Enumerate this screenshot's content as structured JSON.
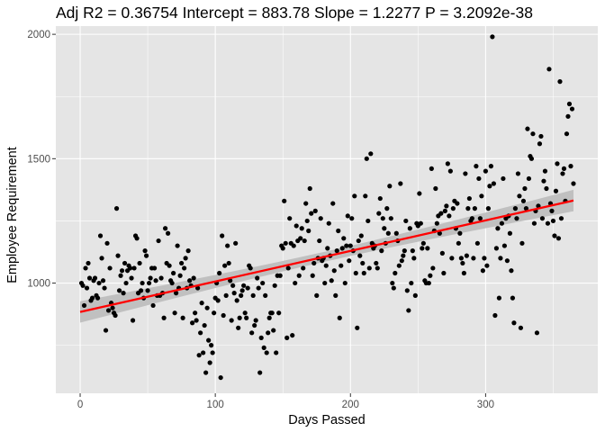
{
  "chart_data": {
    "type": "scatter",
    "title": "Adj R2 =  0.36754 Intercept = 883.78  Slope = 1.2277  P = 3.2092e-38",
    "xlabel": "Days Passed",
    "ylabel": "Employee Requirement",
    "xlim": [
      -18,
      383
    ],
    "ylim": [
      557,
      2033
    ],
    "xticks": [
      0,
      100,
      200,
      300
    ],
    "yticks": [
      1000,
      1500,
      2000
    ],
    "grid": true,
    "background": "#e5e5e5",
    "grid_color": "#ffffff",
    "point_color": "#000000",
    "fit_color": "#ff0000",
    "band_color": "#bebebe",
    "fit": {
      "type": "linear",
      "intercept": 883.78,
      "slope": 1.2277,
      "x_range": [
        0,
        365
      ],
      "ci_halfwidth_ends": 43,
      "ci_halfwidth_mid": 20
    },
    "points": [
      [
        1,
        1000
      ],
      [
        2,
        990
      ],
      [
        3,
        910
      ],
      [
        4,
        1060
      ],
      [
        5,
        980
      ],
      [
        6,
        1080
      ],
      [
        7,
        1020
      ],
      [
        8,
        930
      ],
      [
        9,
        940
      ],
      [
        10,
        1010
      ],
      [
        11,
        1020
      ],
      [
        12,
        950
      ],
      [
        13,
        940
      ],
      [
        14,
        1000
      ],
      [
        15,
        1190
      ],
      [
        16,
        1100
      ],
      [
        17,
        1010
      ],
      [
        18,
        980
      ],
      [
        19,
        810
      ],
      [
        20,
        1160
      ],
      [
        21,
        890
      ],
      [
        22,
        1060
      ],
      [
        23,
        920
      ],
      [
        24,
        900
      ],
      [
        25,
        880
      ],
      [
        26,
        870
      ],
      [
        27,
        1300
      ],
      [
        28,
        1110
      ],
      [
        29,
        970
      ],
      [
        30,
        1030
      ],
      [
        31,
        1050
      ],
      [
        32,
        960
      ],
      [
        33,
        1080
      ],
      [
        34,
        1000
      ],
      [
        35,
        1050
      ],
      [
        36,
        1070
      ],
      [
        37,
        1060
      ],
      [
        38,
        1020
      ],
      [
        39,
        850
      ],
      [
        40,
        1060
      ],
      [
        41,
        1190
      ],
      [
        42,
        1180
      ],
      [
        43,
        960
      ],
      [
        44,
        1080
      ],
      [
        45,
        970
      ],
      [
        46,
        1000
      ],
      [
        47,
        940
      ],
      [
        48,
        1130
      ],
      [
        49,
        1110
      ],
      [
        50,
        970
      ],
      [
        51,
        1000
      ],
      [
        52,
        1020
      ],
      [
        53,
        1060
      ],
      [
        54,
        910
      ],
      [
        55,
        1060
      ],
      [
        56,
        1010
      ],
      [
        57,
        950
      ],
      [
        58,
        1170
      ],
      [
        59,
        950
      ],
      [
        60,
        1020
      ],
      [
        61,
        960
      ],
      [
        62,
        860
      ],
      [
        63,
        1220
      ],
      [
        64,
        1080
      ],
      [
        65,
        1200
      ],
      [
        66,
        1070
      ],
      [
        67,
        1010
      ],
      [
        68,
        1000
      ],
      [
        69,
        1040
      ],
      [
        70,
        880
      ],
      [
        71,
        960
      ],
      [
        72,
        1150
      ],
      [
        73,
        980
      ],
      [
        74,
        1030
      ],
      [
        75,
        1080
      ],
      [
        76,
        860
      ],
      [
        77,
        1060
      ],
      [
        78,
        1100
      ],
      [
        79,
        980
      ],
      [
        80,
        1130
      ],
      [
        81,
        1010
      ],
      [
        82,
        990
      ],
      [
        83,
        840
      ],
      [
        84,
        1020
      ],
      [
        85,
        880
      ],
      [
        86,
        850
      ],
      [
        87,
        980
      ],
      [
        88,
        710
      ],
      [
        89,
        800
      ],
      [
        90,
        920
      ],
      [
        91,
        720
      ],
      [
        92,
        830
      ],
      [
        93,
        640
      ],
      [
        94,
        900
      ],
      [
        95,
        770
      ],
      [
        96,
        680
      ],
      [
        97,
        750
      ],
      [
        98,
        720
      ],
      [
        99,
        880
      ],
      [
        100,
        940
      ],
      [
        101,
        1000
      ],
      [
        102,
        930
      ],
      [
        103,
        1040
      ],
      [
        104,
        620
      ],
      [
        105,
        1190
      ],
      [
        106,
        870
      ],
      [
        107,
        1070
      ],
      [
        108,
        950
      ],
      [
        109,
        1150
      ],
      [
        110,
        1080
      ],
      [
        111,
        1010
      ],
      [
        112,
        850
      ],
      [
        113,
        990
      ],
      [
        114,
        960
      ],
      [
        115,
        1160
      ],
      [
        116,
        930
      ],
      [
        117,
        820
      ],
      [
        118,
        860
      ],
      [
        119,
        950
      ],
      [
        120,
        970
      ],
      [
        121,
        990
      ],
      [
        122,
        880
      ],
      [
        123,
        860
      ],
      [
        124,
        980
      ],
      [
        125,
        1070
      ],
      [
        126,
        1060
      ],
      [
        127,
        800
      ],
      [
        128,
        950
      ],
      [
        129,
        830
      ],
      [
        130,
        850
      ],
      [
        131,
        1020
      ],
      [
        132,
        980
      ],
      [
        133,
        640
      ],
      [
        134,
        780
      ],
      [
        135,
        1000
      ],
      [
        136,
        740
      ],
      [
        137,
        950
      ],
      [
        138,
        720
      ],
      [
        139,
        800
      ],
      [
        140,
        860
      ],
      [
        141,
        880
      ],
      [
        142,
        880
      ],
      [
        143,
        810
      ],
      [
        144,
        990
      ],
      [
        145,
        720
      ],
      [
        146,
        1030
      ],
      [
        147,
        880
      ],
      [
        148,
        1030
      ],
      [
        149,
        1150
      ],
      [
        150,
        1140
      ],
      [
        151,
        1330
      ],
      [
        152,
        1160
      ],
      [
        153,
        780
      ],
      [
        154,
        1060
      ],
      [
        155,
        1260
      ],
      [
        156,
        1160
      ],
      [
        157,
        790
      ],
      [
        158,
        1150
      ],
      [
        159,
        1000
      ],
      [
        160,
        1230
      ],
      [
        161,
        1170
      ],
      [
        162,
        1030
      ],
      [
        163,
        1180
      ],
      [
        164,
        1220
      ],
      [
        165,
        1060
      ],
      [
        166,
        1170
      ],
      [
        167,
        1320
      ],
      [
        168,
        1250
      ],
      [
        169,
        1210
      ],
      [
        170,
        1380
      ],
      [
        171,
        1280
      ],
      [
        172,
        1030
      ],
      [
        173,
        1080
      ],
      [
        174,
        1290
      ],
      [
        175,
        950
      ],
      [
        176,
        1100
      ],
      [
        177,
        1170
      ],
      [
        178,
        1260
      ],
      [
        179,
        1090
      ],
      [
        180,
        1100
      ],
      [
        181,
        1000
      ],
      [
        182,
        1070
      ],
      [
        183,
        1140
      ],
      [
        184,
        1240
      ],
      [
        185,
        1110
      ],
      [
        186,
        1010
      ],
      [
        187,
        1320
      ],
      [
        188,
        1050
      ],
      [
        189,
        950
      ],
      [
        190,
        1130
      ],
      [
        191,
        1210
      ],
      [
        192,
        860
      ],
      [
        193,
        1070
      ],
      [
        194,
        1140
      ],
      [
        195,
        1180
      ],
      [
        196,
        1000
      ],
      [
        197,
        1150
      ],
      [
        198,
        1270
      ],
      [
        199,
        1090
      ],
      [
        200,
        1150
      ],
      [
        201,
        1260
      ],
      [
        202,
        1130
      ],
      [
        203,
        1350
      ],
      [
        204,
        1040
      ],
      [
        205,
        820
      ],
      [
        206,
        1170
      ],
      [
        207,
        1110
      ],
      [
        208,
        1190
      ],
      [
        209,
        1080
      ],
      [
        210,
        1040
      ],
      [
        211,
        1350
      ],
      [
        212,
        1500
      ],
      [
        213,
        1250
      ],
      [
        214,
        1060
      ],
      [
        215,
        1520
      ],
      [
        216,
        1160
      ],
      [
        217,
        1140
      ],
      [
        218,
        1150
      ],
      [
        219,
        1080
      ],
      [
        220,
        1060
      ],
      [
        221,
        1280
      ],
      [
        222,
        1340
      ],
      [
        223,
        1130
      ],
      [
        224,
        1260
      ],
      [
        225,
        1220
      ],
      [
        226,
        1160
      ],
      [
        227,
        1300
      ],
      [
        228,
        1200
      ],
      [
        229,
        1390
      ],
      [
        230,
        1260
      ],
      [
        231,
        1000
      ],
      [
        232,
        980
      ],
      [
        233,
        1040
      ],
      [
        234,
        1200
      ],
      [
        235,
        1170
      ],
      [
        236,
        1070
      ],
      [
        237,
        1400
      ],
      [
        238,
        1090
      ],
      [
        239,
        1110
      ],
      [
        240,
        1130
      ],
      [
        241,
        1250
      ],
      [
        242,
        970
      ],
      [
        243,
        890
      ],
      [
        244,
        1220
      ],
      [
        245,
        1000
      ],
      [
        246,
        1130
      ],
      [
        247,
        1100
      ],
      [
        248,
        950
      ],
      [
        249,
        1240
      ],
      [
        250,
        1230
      ],
      [
        251,
        1360
      ],
      [
        252,
        1240
      ],
      [
        253,
        1140
      ],
      [
        254,
        1160
      ],
      [
        255,
        1010
      ],
      [
        256,
        1000
      ],
      [
        257,
        1140
      ],
      [
        258,
        1000
      ],
      [
        259,
        1030
      ],
      [
        260,
        1460
      ],
      [
        261,
        1060
      ],
      [
        262,
        1210
      ],
      [
        263,
        1380
      ],
      [
        264,
        1240
      ],
      [
        265,
        1270
      ],
      [
        266,
        1200
      ],
      [
        267,
        1280
      ],
      [
        268,
        1120
      ],
      [
        269,
        1040
      ],
      [
        270,
        1290
      ],
      [
        271,
        1310
      ],
      [
        272,
        1480
      ],
      [
        273,
        1270
      ],
      [
        274,
        1450
      ],
      [
        275,
        1100
      ],
      [
        276,
        1300
      ],
      [
        277,
        1330
      ],
      [
        278,
        1220
      ],
      [
        279,
        1320
      ],
      [
        280,
        1160
      ],
      [
        281,
        1200
      ],
      [
        282,
        1100
      ],
      [
        283,
        1080
      ],
      [
        284,
        1040
      ],
      [
        285,
        1440
      ],
      [
        286,
        1110
      ],
      [
        287,
        1300
      ],
      [
        288,
        1340
      ],
      [
        289,
        1250
      ],
      [
        290,
        1260
      ],
      [
        291,
        1100
      ],
      [
        292,
        1300
      ],
      [
        293,
        1470
      ],
      [
        294,
        1160
      ],
      [
        295,
        1420
      ],
      [
        296,
        1260
      ],
      [
        297,
        1350
      ],
      [
        298,
        1050
      ],
      [
        299,
        1100
      ],
      [
        300,
        1450
      ],
      [
        301,
        1070
      ],
      [
        302,
        1300
      ],
      [
        303,
        1390
      ],
      [
        304,
        1470
      ],
      [
        305,
        1990
      ],
      [
        306,
        1400
      ],
      [
        307,
        870
      ],
      [
        308,
        1140
      ],
      [
        309,
        1220
      ],
      [
        310,
        940
      ],
      [
        311,
        1100
      ],
      [
        312,
        1240
      ],
      [
        313,
        1420
      ],
      [
        314,
        1150
      ],
      [
        315,
        1260
      ],
      [
        316,
        1090
      ],
      [
        317,
        1270
      ],
      [
        318,
        1200
      ],
      [
        319,
        1050
      ],
      [
        320,
        940
      ],
      [
        321,
        840
      ],
      [
        322,
        1300
      ],
      [
        323,
        1260
      ],
      [
        324,
        1440
      ],
      [
        325,
        1350
      ],
      [
        326,
        820
      ],
      [
        327,
        1160
      ],
      [
        328,
        1330
      ],
      [
        329,
        1380
      ],
      [
        330,
        1300
      ],
      [
        331,
        1620
      ],
      [
        332,
        1420
      ],
      [
        333,
        1510
      ],
      [
        334,
        1500
      ],
      [
        335,
        1600
      ],
      [
        336,
        1240
      ],
      [
        337,
        1290
      ],
      [
        338,
        800
      ],
      [
        339,
        1310
      ],
      [
        340,
        1560
      ],
      [
        341,
        1590
      ],
      [
        342,
        1260
      ],
      [
        343,
        1410
      ],
      [
        344,
        1450
      ],
      [
        345,
        1380
      ],
      [
        346,
        1240
      ],
      [
        347,
        1860
      ],
      [
        348,
        1320
      ],
      [
        349,
        1290
      ],
      [
        350,
        1250
      ],
      [
        351,
        1190
      ],
      [
        352,
        1370
      ],
      [
        353,
        1480
      ],
      [
        354,
        1180
      ],
      [
        355,
        1810
      ],
      [
        356,
        1260
      ],
      [
        357,
        1440
      ],
      [
        358,
        1460
      ],
      [
        359,
        1330
      ],
      [
        360,
        1600
      ],
      [
        361,
        1670
      ],
      [
        362,
        1720
      ],
      [
        363,
        1470
      ],
      [
        364,
        1700
      ],
      [
        365,
        1400
      ]
    ]
  }
}
